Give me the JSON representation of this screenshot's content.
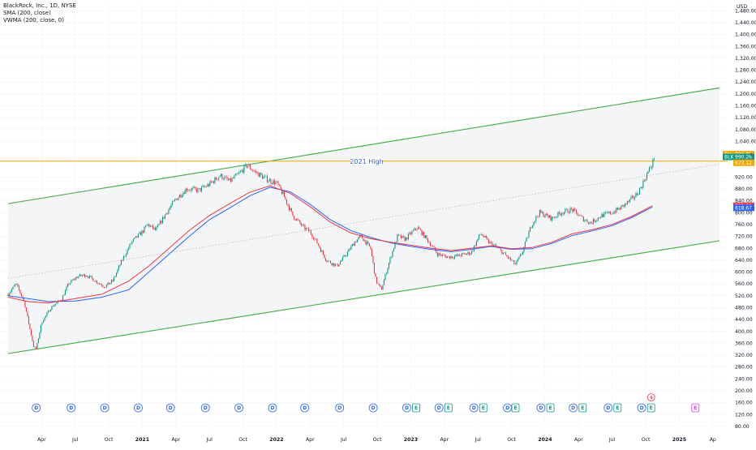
{
  "legend": {
    "symbol": "BlackRock, Inc., 1D, NYSE",
    "sma": "SMA (200, close)",
    "vwma": "VWMA (200, close, 0)"
  },
  "chart_data": {
    "type": "candlestick",
    "currency": "USD",
    "yticks": [
      80,
      120,
      160,
      200,
      240,
      280,
      320,
      360,
      400,
      440,
      480,
      520,
      560,
      600,
      640,
      680,
      720,
      760,
      800,
      840,
      880,
      920,
      1040,
      1080,
      1120,
      1160,
      1200,
      1240,
      1280,
      1320,
      1360,
      1400,
      1440,
      1480
    ],
    "ytick_labels": [
      "80.00",
      "120.00",
      "160.00",
      "200.00",
      "240.00",
      "280.00",
      "320.00",
      "360.00",
      "400.00",
      "440.00",
      "480.00",
      "520.00",
      "560.00",
      "600.00",
      "640.00",
      "680.00",
      "720.00",
      "760.00",
      "800.00",
      "840.00",
      "880.00",
      "920.00",
      "1,040.00",
      "1,080.00",
      "1,120.00",
      "1,160.00",
      "1,200.00",
      "1,240.00",
      "1,280.00",
      "1,320.00",
      "1,360.00",
      "1,400.00",
      "1,440.00",
      "1,480.00"
    ],
    "ylim": [
      63,
      1505
    ],
    "xticks": [
      {
        "t": 2020.25,
        "label": "Apr"
      },
      {
        "t": 2020.5,
        "label": "Jul"
      },
      {
        "t": 2020.75,
        "label": "Oct"
      },
      {
        "t": 2021.0,
        "label": "2021"
      },
      {
        "t": 2021.25,
        "label": "Apr"
      },
      {
        "t": 2021.5,
        "label": "Jul"
      },
      {
        "t": 2021.75,
        "label": "Oct"
      },
      {
        "t": 2022.0,
        "label": "2022"
      },
      {
        "t": 2022.25,
        "label": "Apr"
      },
      {
        "t": 2022.5,
        "label": "Jul"
      },
      {
        "t": 2022.75,
        "label": "Oct"
      },
      {
        "t": 2023.0,
        "label": "2023"
      },
      {
        "t": 2023.25,
        "label": "Apr"
      },
      {
        "t": 2023.5,
        "label": "Jul"
      },
      {
        "t": 2023.75,
        "label": "Oct"
      },
      {
        "t": 2024.0,
        "label": "2024"
      },
      {
        "t": 2024.25,
        "label": "Apr"
      },
      {
        "t": 2024.5,
        "label": "Jul"
      },
      {
        "t": 2024.75,
        "label": "Oct"
      },
      {
        "t": 2025.0,
        "label": "2025"
      },
      {
        "t": 2025.25,
        "label": "Ap"
      }
    ],
    "xlim": [
      2019.94,
      2025.36
    ],
    "price_path": [
      [
        2020.0,
        525
      ],
      [
        2020.06,
        560
      ],
      [
        2020.12,
        500
      ],
      [
        2020.19,
        350
      ],
      [
        2020.21,
        340
      ],
      [
        2020.25,
        430
      ],
      [
        2020.32,
        480
      ],
      [
        2020.4,
        510
      ],
      [
        2020.45,
        560
      ],
      [
        2020.52,
        585
      ],
      [
        2020.58,
        590
      ],
      [
        2020.65,
        570
      ],
      [
        2020.72,
        550
      ],
      [
        2020.78,
        570
      ],
      [
        2020.85,
        640
      ],
      [
        2020.92,
        700
      ],
      [
        2021.0,
        735
      ],
      [
        2021.04,
        760
      ],
      [
        2021.1,
        740
      ],
      [
        2021.18,
        800
      ],
      [
        2021.25,
        845
      ],
      [
        2021.33,
        880
      ],
      [
        2021.42,
        875
      ],
      [
        2021.5,
        895
      ],
      [
        2021.58,
        925
      ],
      [
        2021.65,
        905
      ],
      [
        2021.72,
        930
      ],
      [
        2021.78,
        960
      ],
      [
        2021.83,
        940
      ],
      [
        2021.9,
        920
      ],
      [
        2021.96,
        905
      ],
      [
        2022.0,
        900
      ],
      [
        2022.05,
        860
      ],
      [
        2022.12,
        790
      ],
      [
        2022.2,
        750
      ],
      [
        2022.25,
        735
      ],
      [
        2022.3,
        700
      ],
      [
        2022.37,
        640
      ],
      [
        2022.45,
        620
      ],
      [
        2022.52,
        660
      ],
      [
        2022.58,
        700
      ],
      [
        2022.63,
        720
      ],
      [
        2022.7,
        680
      ],
      [
        2022.74,
        570
      ],
      [
        2022.78,
        540
      ],
      [
        2022.85,
        650
      ],
      [
        2022.9,
        720
      ],
      [
        2022.96,
        710
      ],
      [
        2023.0,
        730
      ],
      [
        2023.05,
        750
      ],
      [
        2023.12,
        710
      ],
      [
        2023.2,
        660
      ],
      [
        2023.28,
        650
      ],
      [
        2023.36,
        655
      ],
      [
        2023.45,
        665
      ],
      [
        2023.52,
        730
      ],
      [
        2023.58,
        700
      ],
      [
        2023.65,
        680
      ],
      [
        2023.72,
        650
      ],
      [
        2023.78,
        625
      ],
      [
        2023.83,
        665
      ],
      [
        2023.9,
        760
      ],
      [
        2023.96,
        800
      ],
      [
        2024.05,
        780
      ],
      [
        2024.12,
        800
      ],
      [
        2024.2,
        810
      ],
      [
        2024.28,
        780
      ],
      [
        2024.34,
        765
      ],
      [
        2024.42,
        790
      ],
      [
        2024.5,
        800
      ],
      [
        2024.56,
        815
      ],
      [
        2024.62,
        835
      ],
      [
        2024.68,
        860
      ],
      [
        2024.72,
        890
      ],
      [
        2024.76,
        930
      ],
      [
        2024.8,
        965
      ],
      [
        2024.815,
        990
      ]
    ],
    "sma_200": [
      [
        2020.0,
        515
      ],
      [
        2020.15,
        500
      ],
      [
        2020.3,
        495
      ],
      [
        2020.5,
        510
      ],
      [
        2020.7,
        525
      ],
      [
        2020.9,
        570
      ],
      [
        2021.05,
        620
      ],
      [
        2021.2,
        680
      ],
      [
        2021.35,
        740
      ],
      [
        2021.5,
        790
      ],
      [
        2021.65,
        830
      ],
      [
        2021.8,
        868
      ],
      [
        2021.95,
        890
      ],
      [
        2022.1,
        865
      ],
      [
        2022.25,
        820
      ],
      [
        2022.4,
        768
      ],
      [
        2022.55,
        732
      ],
      [
        2022.7,
        712
      ],
      [
        2022.85,
        700
      ],
      [
        2023.0,
        690
      ],
      [
        2023.15,
        680
      ],
      [
        2023.3,
        672
      ],
      [
        2023.45,
        680
      ],
      [
        2023.6,
        688
      ],
      [
        2023.75,
        678
      ],
      [
        2023.9,
        682
      ],
      [
        2024.05,
        700
      ],
      [
        2024.2,
        728
      ],
      [
        2024.35,
        742
      ],
      [
        2024.5,
        760
      ],
      [
        2024.65,
        788
      ],
      [
        2024.8,
        823
      ]
    ],
    "vwma_200": [
      [
        2020.0,
        520
      ],
      [
        2020.15,
        510
      ],
      [
        2020.3,
        500
      ],
      [
        2020.5,
        502
      ],
      [
        2020.7,
        515
      ],
      [
        2020.9,
        540
      ],
      [
        2021.05,
        600
      ],
      [
        2021.2,
        660
      ],
      [
        2021.35,
        720
      ],
      [
        2021.5,
        776
      ],
      [
        2021.65,
        815
      ],
      [
        2021.8,
        856
      ],
      [
        2021.95,
        885
      ],
      [
        2022.1,
        870
      ],
      [
        2022.25,
        828
      ],
      [
        2022.4,
        776
      ],
      [
        2022.55,
        740
      ],
      [
        2022.7,
        716
      ],
      [
        2022.85,
        698
      ],
      [
        2023.0,
        686
      ],
      [
        2023.15,
        676
      ],
      [
        2023.3,
        668
      ],
      [
        2023.45,
        676
      ],
      [
        2023.6,
        686
      ],
      [
        2023.75,
        676
      ],
      [
        2023.9,
        678
      ],
      [
        2024.05,
        696
      ],
      [
        2024.2,
        722
      ],
      [
        2024.35,
        738
      ],
      [
        2024.5,
        756
      ],
      [
        2024.65,
        784
      ],
      [
        2024.8,
        819
      ]
    ],
    "channel": {
      "upper": [
        [
          2020.0,
          830
        ],
        [
          2025.3,
          1220
        ]
      ],
      "lower": [
        [
          2020.0,
          325
        ],
        [
          2025.3,
          705
        ]
      ],
      "mid": [
        [
          2020.0,
          578
        ],
        [
          2025.3,
          963
        ]
      ]
    },
    "horizontal_level": {
      "label": "2021 High",
      "value": 973.12
    },
    "price_tags": [
      {
        "label": "Pre",
        "value": "996.80",
        "color": "#f7a600"
      },
      {
        "label": "BLK",
        "value": "990.26",
        "color": "#089981"
      },
      {
        "label": "",
        "value": "973.12",
        "color": "#f7a600"
      },
      {
        "label": "",
        "value": "822.86",
        "color": "#f23645"
      },
      {
        "label": "",
        "value": "818.67",
        "color": "#2962ff"
      }
    ],
    "events": {
      "dividends": [
        2020.21,
        2020.47,
        2020.72,
        2020.97,
        2021.21,
        2021.47,
        2021.72,
        2021.97,
        2022.21,
        2022.47,
        2022.72,
        2022.97,
        2023.21,
        2023.47,
        2023.72,
        2023.97,
        2024.21,
        2024.47,
        2024.72
      ],
      "earnings": [
        2023.04,
        2023.28,
        2023.54,
        2023.78,
        2024.04,
        2024.28,
        2024.54,
        2024.79,
        2025.12
      ],
      "dividend_letter": "D",
      "earnings_letter": "E"
    },
    "colors": {
      "up": "#089981",
      "down": "#f23645",
      "channel": "#4caf50",
      "sma": "#f23645",
      "vwma": "#2962ff",
      "level": "#f7a600",
      "grid": "#f0f3fa",
      "channel_fill": "#f4f5f7"
    }
  }
}
